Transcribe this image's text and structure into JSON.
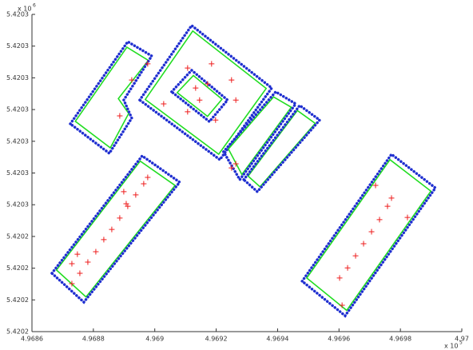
{
  "chart_data": {
    "type": "scatter",
    "xlim": [
      4.9686,
      4.97
    ],
    "xticks": [
      4.9686,
      4.9688,
      4.969,
      4.9692,
      4.9694,
      4.9696,
      4.9698,
      4.97
    ],
    "ylim": [
      5.42022,
      5.42032
    ],
    "yticks": [
      {
        "value": 5.42022,
        "label": "5.4202"
      },
      {
        "value": 5.42023,
        "label": "5.4202"
      },
      {
        "value": 5.42024,
        "label": "5.4202"
      },
      {
        "value": 5.42025,
        "label": "5.4202"
      },
      {
        "value": 5.42026,
        "label": "5.4203"
      },
      {
        "value": 5.42027,
        "label": "5.4203"
      },
      {
        "value": 5.42028,
        "label": "5.4203"
      },
      {
        "value": 5.42029,
        "label": "5.4203"
      },
      {
        "value": 5.4203,
        "label": "5.4203"
      },
      {
        "value": 5.42031,
        "label": "5.4203"
      },
      {
        "value": 5.42032,
        "label": "5.4203"
      }
    ],
    "x_multiplier": "x 10",
    "x_multiplier_exp": "5",
    "y_multiplier": "x 10",
    "y_multiplier_exp": "6",
    "boundary_color": "#1f2fd0",
    "outline_color": "#22dd22",
    "point_color": "#ee1c1c",
    "polygons": [
      {
        "x": [
          4.968725,
          4.968912,
          4.96899,
          4.968899,
          4.968925,
          4.968852
        ],
        "y": [
          5.4202855,
          5.4203114,
          5.4203069,
          5.420293,
          5.4202873,
          5.4202762
        ]
      },
      {
        "x": [
          4.968951,
          4.96912,
          4.969381,
          4.969212
        ],
        "y": [
          5.420293,
          5.4203165,
          5.4202968,
          5.4202742
        ]
      },
      {
        "x": [
          4.969055,
          4.96912,
          4.969237,
          4.969178
        ],
        "y": [
          5.4202956,
          5.4203024,
          5.420293,
          5.4202862
        ]
      },
      {
        "x": [
          4.969224,
          4.969394,
          4.969459,
          4.969277
        ],
        "y": [
          5.4202767,
          5.4202956,
          5.4202918,
          5.4202679
        ]
      },
      {
        "x": [
          4.96929,
          4.969472,
          4.969537,
          4.969334
        ],
        "y": [
          5.4202679,
          5.4202913,
          5.4202867,
          5.4202641
        ]
      },
      {
        "x": [
          4.968665,
          4.968959,
          4.969081,
          4.968769
        ],
        "y": [
          5.4202384,
          5.4202754,
          5.4202671,
          5.4202293
        ]
      },
      {
        "x": [
          4.96948,
          4.969771,
          4.969914,
          4.96962
        ],
        "y": [
          5.4202359,
          5.4202759,
          5.4202653,
          5.420225
        ]
      }
    ],
    "points": {
      "x": [
        4.96873,
        4.968756,
        4.968782,
        4.968808,
        4.968834,
        4.96886,
        4.968886,
        4.968912,
        4.968938,
        4.968964,
        4.968977,
        4.96873,
        4.968748,
        4.968899,
        4.968907,
        4.969602,
        4.969628,
        4.969654,
        4.96968,
        4.969706,
        4.969732,
        4.969758,
        4.969771,
        4.969823,
        4.969719,
        4.96961,
        4.969107,
        4.969185,
        4.96925,
        4.969264,
        4.969198,
        4.969107,
        4.969029,
        4.969133,
        4.969172,
        4.969146,
        4.968977,
        4.968925,
        4.968886,
        4.969264,
        4.96925
      ],
      "y": [
        5.4202351,
        5.4202384,
        5.4202419,
        5.4202452,
        5.420249,
        5.4202522,
        5.4202558,
        5.4202595,
        5.4202631,
        5.4202666,
        5.4202686,
        5.4202414,
        5.4202444,
        5.4202641,
        5.4202603,
        5.4202369,
        5.4202401,
        5.4202439,
        5.4202477,
        5.4202515,
        5.4202553,
        5.4202595,
        5.4202621,
        5.420256,
        5.4202661,
        5.4202283,
        5.4203031,
        5.4203044,
        5.4202993,
        5.420293,
        5.4202867,
        5.4202893,
        5.4202918,
        5.4202968,
        5.4202981,
        5.420293,
        5.4203044,
        5.4202993,
        5.420288,
        5.4202729,
        5.4202716
      ]
    }
  }
}
